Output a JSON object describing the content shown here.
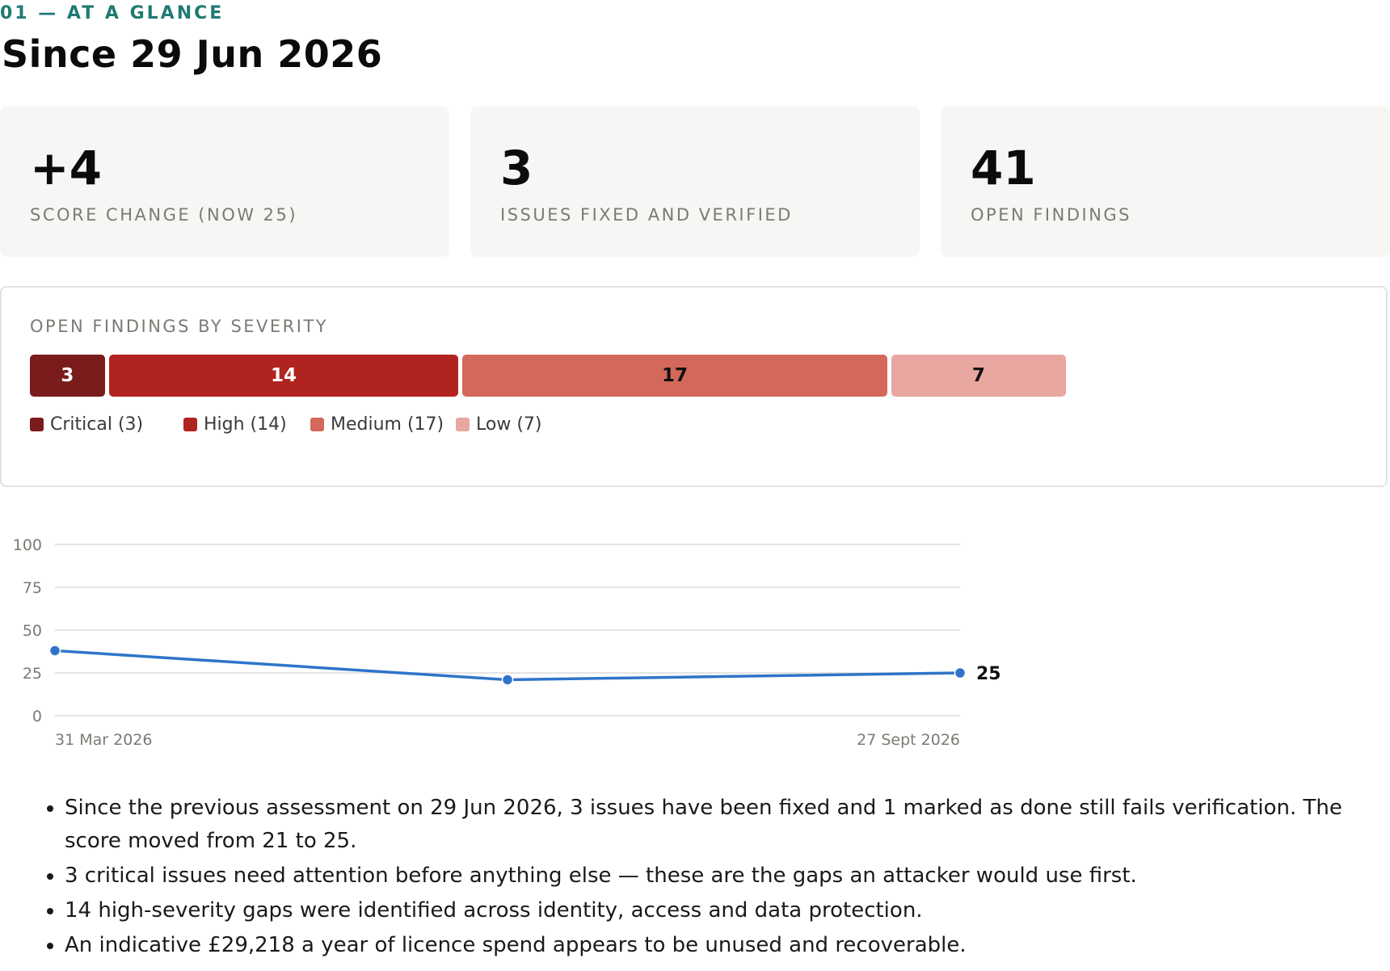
{
  "section": {
    "eyebrow": "01 — AT A GLANCE",
    "title": "Since 29 Jun 2026"
  },
  "kpis": [
    {
      "value": "+4",
      "label": "SCORE CHANGE (NOW 25)"
    },
    {
      "value": "3",
      "label": "ISSUES FIXED AND VERIFIED"
    },
    {
      "value": "41",
      "label": "OPEN FINDINGS"
    }
  ],
  "severity": {
    "title": "OPEN FINDINGS BY SEVERITY",
    "segments": [
      {
        "name": "Critical",
        "count": 3,
        "label": "3",
        "color": "#7b1c1c",
        "text_color": "#ffffff"
      },
      {
        "name": "High",
        "count": 14,
        "label": "14",
        "color": "#b1231f",
        "text_color": "#ffffff"
      },
      {
        "name": "Medium",
        "count": 17,
        "label": "17",
        "color": "#d4695b",
        "text_color": "#111111"
      },
      {
        "name": "Low",
        "count": 7,
        "label": "7",
        "color": "#e8a7a0",
        "text_color": "#111111"
      }
    ],
    "legend": [
      "Critical (3)",
      "High (14)",
      "Medium (17)",
      "Low (7)"
    ]
  },
  "chart_data": {
    "type": "line",
    "title": "",
    "xlabel": "",
    "ylabel": "",
    "ylim": [
      0,
      100
    ],
    "yticks": [
      "100",
      "75",
      "50",
      "25",
      "0"
    ],
    "x_tick_labels": [
      "31 Mar 2026",
      "27 Sept 2026"
    ],
    "grid": true,
    "series": [
      {
        "color": "#2f74c9",
        "points": [
          {
            "x": "31 Mar 2026",
            "y": 38
          },
          {
            "x": "29 Jun 2026",
            "y": 21
          },
          {
            "x": "27 Sept 2026",
            "y": 25
          }
        ]
      }
    ],
    "end_label": "25"
  },
  "bullets": [
    "Since the previous assessment on 29 Jun 2026, 3 issues have been fixed and 1 marked as done still fails verification. The score moved from 21 to 25.",
    "3 critical issues need attention before anything else — these are the gaps an attacker would use first.",
    "14 high-severity gaps were identified across identity, access and data protection.",
    "An indicative £29,218 a year of licence spend appears to be unused and recoverable."
  ]
}
